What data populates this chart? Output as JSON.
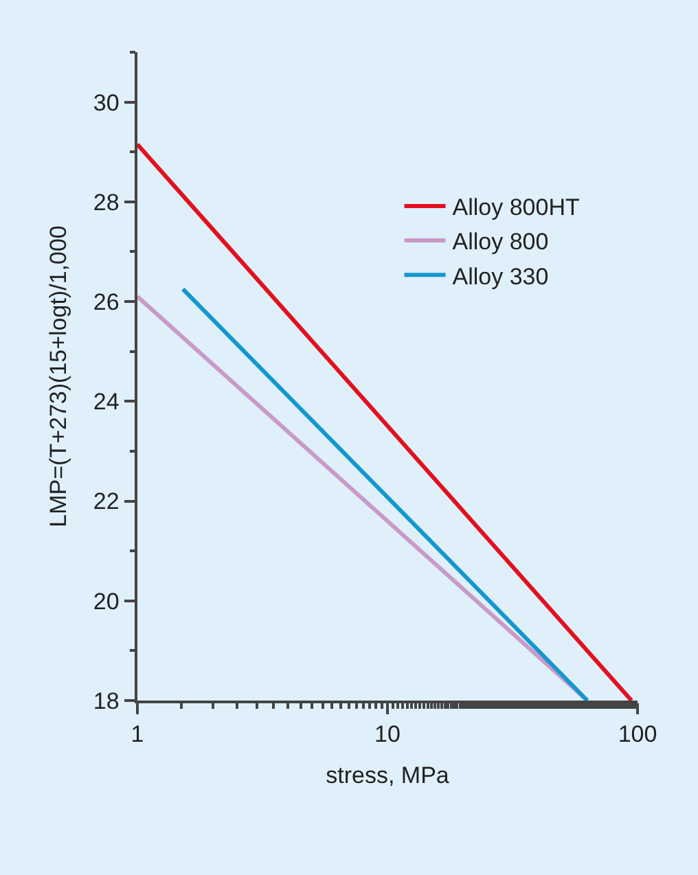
{
  "chart_data": {
    "type": "line",
    "xlabel": "stress, MPa",
    "ylabel": "LMP=(T+273)(15+logt)/1,000",
    "log": "x",
    "xlim": [
      1,
      100
    ],
    "xticks": [
      1,
      10,
      100
    ],
    "ylim": [
      18,
      31
    ],
    "yticks": [
      18,
      20,
      22,
      24,
      26,
      28,
      30
    ],
    "grid": false,
    "legend": "top right",
    "marker": "none",
    "line_style": "solid",
    "series": [
      {
        "name": "Alloy 800HT",
        "color": "#e3101f",
        "x": [
          1,
          94.6
        ],
        "values": [
          29.15,
          18
        ]
      },
      {
        "name": "Alloy 800",
        "color": "#c99ac8",
        "x": [
          1,
          63
        ],
        "values": [
          26.1,
          18
        ]
      },
      {
        "name": "Alloy 330",
        "color": "#1497cf",
        "x": [
          1.52,
          63
        ],
        "values": [
          26.25,
          18
        ]
      }
    ]
  }
}
